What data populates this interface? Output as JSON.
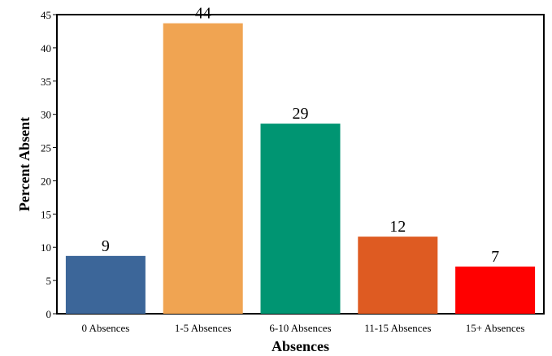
{
  "chart_data": {
    "type": "bar",
    "categories": [
      "0 Absences",
      "1-5 Absences",
      "6-10 Absences",
      "11-15 Absences",
      "15+ Absences"
    ],
    "values": [
      8.7,
      43.7,
      28.6,
      11.6,
      7.1
    ],
    "data_labels": [
      "9",
      "44",
      "29",
      "12",
      "7"
    ],
    "colors": [
      "#3c6699",
      "#f0a452",
      "#009572",
      "#de5b22",
      "#ff0000"
    ],
    "title": "",
    "xlabel": "Absences",
    "ylabel": "Percent Absent",
    "ylim": [
      0,
      45
    ],
    "yticks": [
      "0",
      "5",
      "10",
      "15",
      "20",
      "25",
      "30",
      "35",
      "40",
      "45"
    ],
    "grid": false,
    "legend": "none"
  }
}
